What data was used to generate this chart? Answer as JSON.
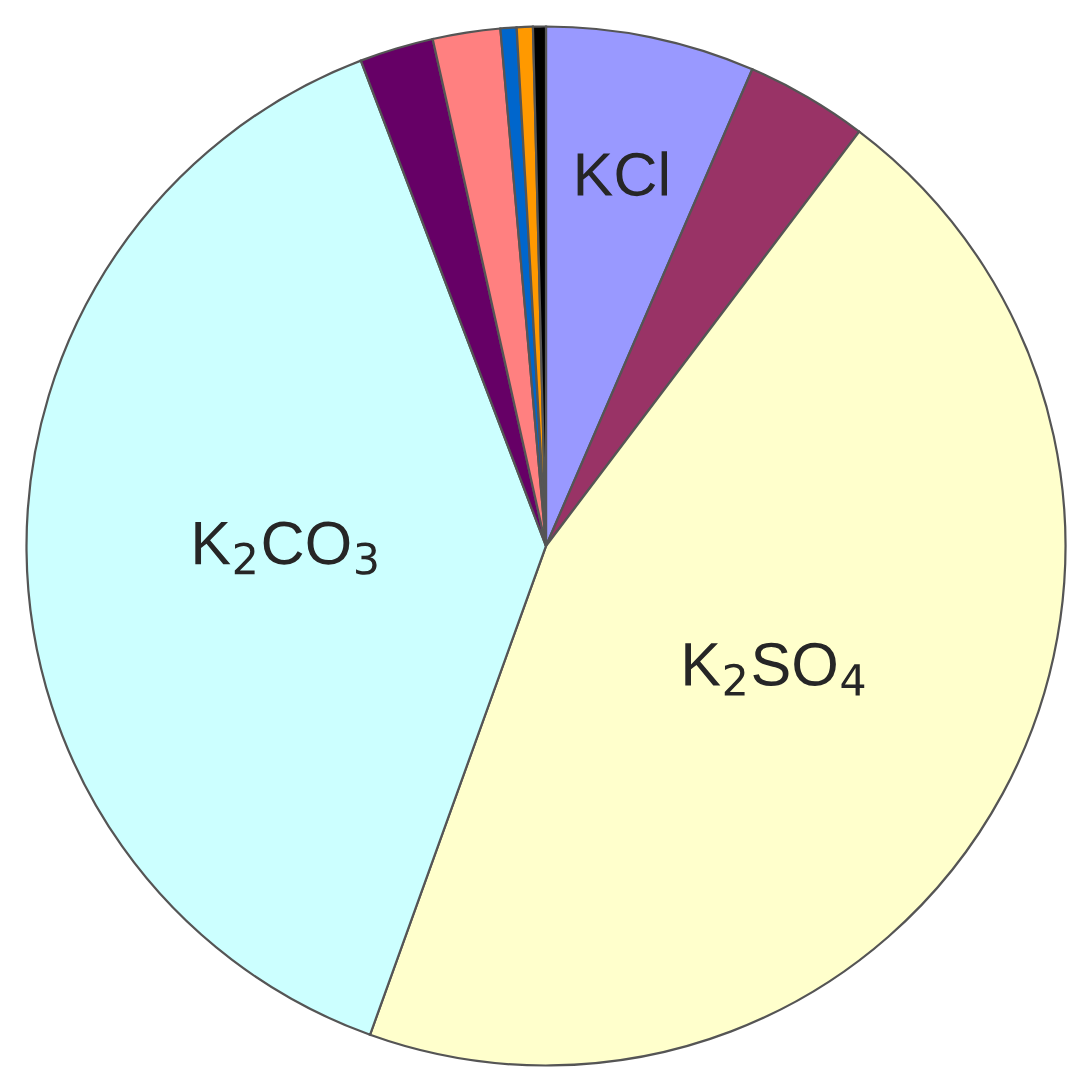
{
  "chart_data": {
    "type": "pie",
    "categories": [
      "KCl",
      null,
      "K$_{2}$SO$_{4}$",
      "K$_{2}$CO$_{3}$",
      null,
      null,
      null,
      null,
      null
    ],
    "values": [
      6.5,
      3.8,
      45.2,
      38.7,
      2.3,
      2.1,
      0.5,
      0.5,
      0.4
    ],
    "colors": [
      "#9999ff",
      "#993366",
      "#ffffcc",
      "#ccffff",
      "#660066",
      "#ff8080",
      "#0066cc",
      "#ff9900",
      "#000000"
    ],
    "legend": false
  }
}
